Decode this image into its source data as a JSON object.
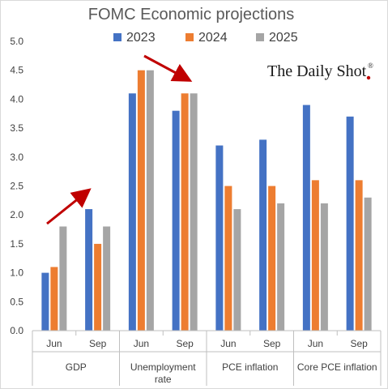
{
  "chart_data": {
    "type": "bar",
    "title": "FOMC Economic projections",
    "ylim": [
      0,
      5.0
    ],
    "y_ticks": [
      "0.0",
      "0.5",
      "1.0",
      "1.5",
      "2.0",
      "2.5",
      "3.0",
      "3.5",
      "4.0",
      "4.5",
      "5.0"
    ],
    "groups": [
      {
        "label": "GDP",
        "subs": [
          "Jun",
          "Sep"
        ]
      },
      {
        "label": "Unemployment rate",
        "label_lines": [
          "Unemployment",
          "rate"
        ],
        "subs": [
          "Jun",
          "Sep"
        ]
      },
      {
        "label": "PCE inflation",
        "subs": [
          "Jun",
          "Sep"
        ]
      },
      {
        "label": "Core PCE inflation",
        "subs": [
          "Jun",
          "Sep"
        ]
      }
    ],
    "series": [
      {
        "name": "2023",
        "color": "#4472C4",
        "values": [
          1.0,
          2.1,
          4.1,
          3.8,
          3.2,
          3.3,
          3.9,
          3.7
        ]
      },
      {
        "name": "2024",
        "color": "#ED7D31",
        "values": [
          1.1,
          1.5,
          4.5,
          4.1,
          2.5,
          2.5,
          2.6,
          2.6
        ]
      },
      {
        "name": "2025",
        "color": "#A5A5A5",
        "values": [
          1.8,
          1.8,
          4.5,
          4.1,
          2.1,
          2.2,
          2.2,
          2.3
        ]
      }
    ],
    "legend": "top",
    "grid": false,
    "annotations": [
      {
        "type": "arrow",
        "color": "#C00000",
        "group": "GDP",
        "direction": "up"
      },
      {
        "type": "arrow",
        "color": "#C00000",
        "group": "Unemployment rate",
        "direction": "down"
      }
    ]
  },
  "branding": {
    "text": "The Daily Shot",
    "mark": "®"
  }
}
